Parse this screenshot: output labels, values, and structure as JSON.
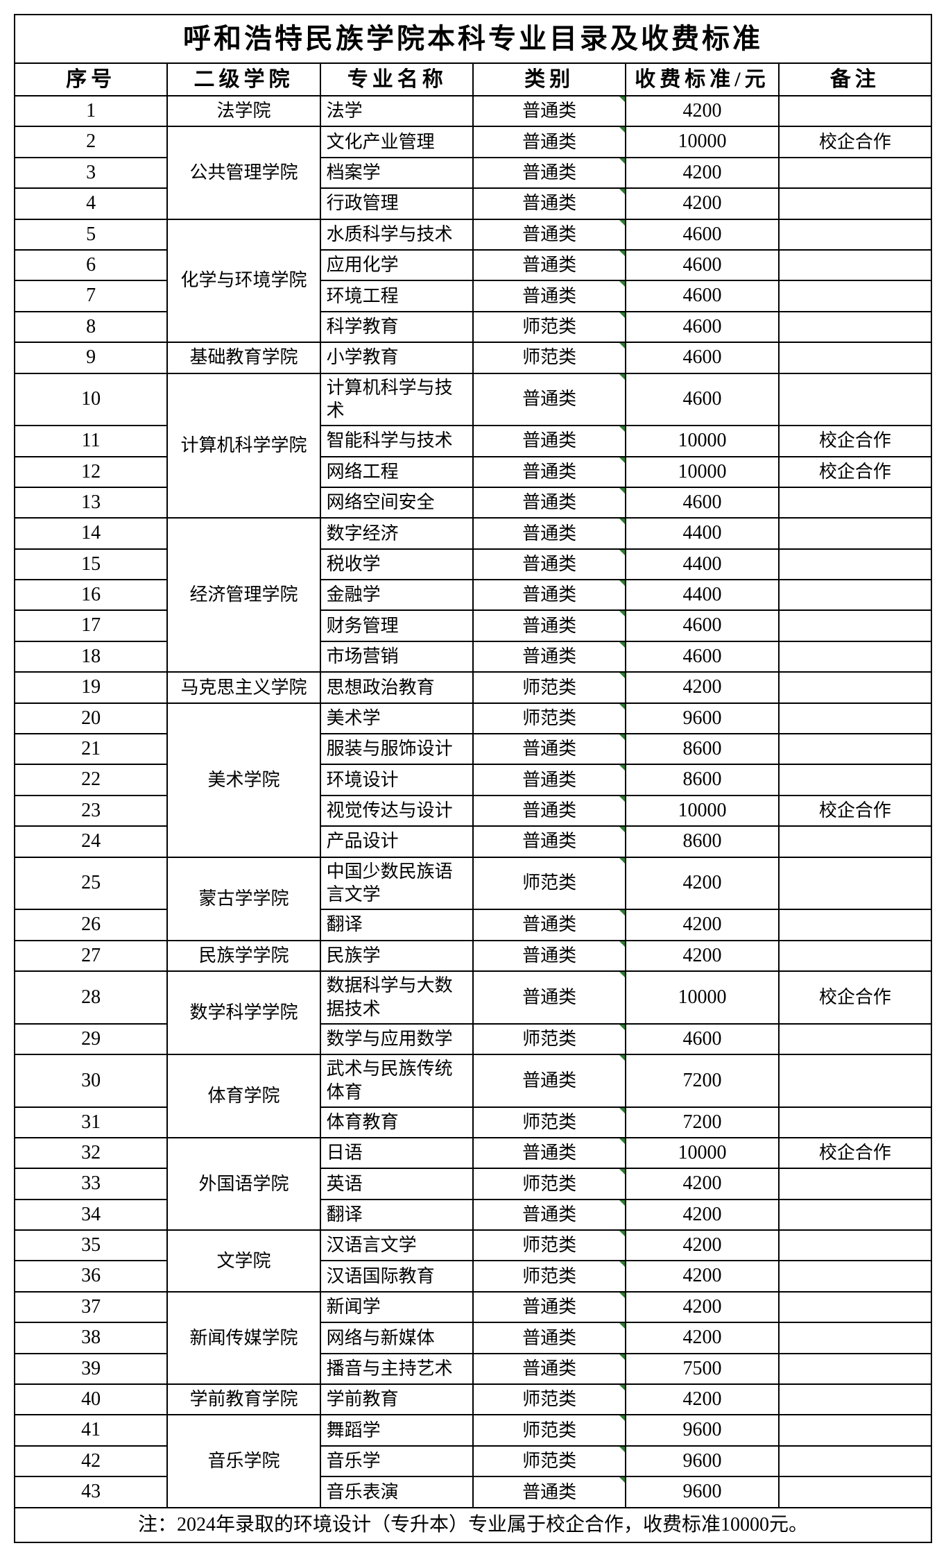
{
  "title": "呼和浩特民族学院本科专业目录及收费标准",
  "headers": {
    "seq": "序号",
    "college": "二级学院",
    "major": "专业名称",
    "cat": "类别",
    "fee": "收费标准/元",
    "note": "备注"
  },
  "footnote": "注：2024年录取的环境设计（专升本）专业属于校企合作，收费标准10000元。",
  "colleges": [
    {
      "name": "法学院",
      "rows": [
        {
          "seq": 1,
          "major": "法学",
          "cat": "普通类",
          "fee": "4200",
          "note": ""
        }
      ]
    },
    {
      "name": "公共管理学院",
      "rows": [
        {
          "seq": 2,
          "major": "文化产业管理",
          "cat": "普通类",
          "fee": "10000",
          "note": "校企合作"
        },
        {
          "seq": 3,
          "major": "档案学",
          "cat": "普通类",
          "fee": "4200",
          "note": ""
        },
        {
          "seq": 4,
          "major": "行政管理",
          "cat": "普通类",
          "fee": "4200",
          "note": ""
        }
      ]
    },
    {
      "name": "化学与环境学院",
      "rows": [
        {
          "seq": 5,
          "major": "水质科学与技术",
          "cat": "普通类",
          "fee": "4600",
          "note": ""
        },
        {
          "seq": 6,
          "major": "应用化学",
          "cat": "普通类",
          "fee": "4600",
          "note": ""
        },
        {
          "seq": 7,
          "major": "环境工程",
          "cat": "普通类",
          "fee": "4600",
          "note": ""
        },
        {
          "seq": 8,
          "major": "科学教育",
          "cat": "师范类",
          "fee": "4600",
          "note": ""
        }
      ]
    },
    {
      "name": "基础教育学院",
      "rows": [
        {
          "seq": 9,
          "major": "小学教育",
          "cat": "师范类",
          "fee": "4600",
          "note": ""
        }
      ]
    },
    {
      "name": "计算机科学学院",
      "rows": [
        {
          "seq": 10,
          "major": "计算机科学与技术",
          "cat": "普通类",
          "fee": "4600",
          "note": ""
        },
        {
          "seq": 11,
          "major": "智能科学与技术",
          "cat": "普通类",
          "fee": "10000",
          "note": "校企合作"
        },
        {
          "seq": 12,
          "major": "网络工程",
          "cat": "普通类",
          "fee": "10000",
          "note": "校企合作"
        },
        {
          "seq": 13,
          "major": "网络空间安全",
          "cat": "普通类",
          "fee": "4600",
          "note": ""
        }
      ]
    },
    {
      "name": "经济管理学院",
      "rows": [
        {
          "seq": 14,
          "major": "数字经济",
          "cat": "普通类",
          "fee": "4400",
          "note": ""
        },
        {
          "seq": 15,
          "major": "税收学",
          "cat": "普通类",
          "fee": "4400",
          "note": ""
        },
        {
          "seq": 16,
          "major": "金融学",
          "cat": "普通类",
          "fee": "4400",
          "note": ""
        },
        {
          "seq": 17,
          "major": "财务管理",
          "cat": "普通类",
          "fee": "4600",
          "note": ""
        },
        {
          "seq": 18,
          "major": "市场营销",
          "cat": "普通类",
          "fee": "4600",
          "note": ""
        }
      ]
    },
    {
      "name": "马克思主义学院",
      "rows": [
        {
          "seq": 19,
          "major": "思想政治教育",
          "cat": "师范类",
          "fee": "4200",
          "note": ""
        }
      ]
    },
    {
      "name": "美术学院",
      "rows": [
        {
          "seq": 20,
          "major": "美术学",
          "cat": "师范类",
          "fee": "9600",
          "note": ""
        },
        {
          "seq": 21,
          "major": "服装与服饰设计",
          "cat": "普通类",
          "fee": "8600",
          "note": ""
        },
        {
          "seq": 22,
          "major": "环境设计",
          "cat": "普通类",
          "fee": "8600",
          "note": ""
        },
        {
          "seq": 23,
          "major": "视觉传达与设计",
          "cat": "普通类",
          "fee": "10000",
          "note": "校企合作"
        },
        {
          "seq": 24,
          "major": "产品设计",
          "cat": "普通类",
          "fee": "8600",
          "note": ""
        }
      ]
    },
    {
      "name": "蒙古学学院",
      "rows": [
        {
          "seq": 25,
          "major": "中国少数民族语言文学",
          "cat": "师范类",
          "fee": "4200",
          "note": ""
        },
        {
          "seq": 26,
          "major": "翻译",
          "cat": "普通类",
          "fee": "4200",
          "note": ""
        }
      ]
    },
    {
      "name": "民族学学院",
      "rows": [
        {
          "seq": 27,
          "major": "民族学",
          "cat": "普通类",
          "fee": "4200",
          "note": ""
        }
      ]
    },
    {
      "name": "数学科学学院",
      "rows": [
        {
          "seq": 28,
          "major": "数据科学与大数据技术",
          "cat": "普通类",
          "fee": "10000",
          "note": "校企合作"
        },
        {
          "seq": 29,
          "major": "数学与应用数学",
          "cat": "师范类",
          "fee": "4600",
          "note": ""
        }
      ]
    },
    {
      "name": "体育学院",
      "rows": [
        {
          "seq": 30,
          "major": "武术与民族传统体育",
          "cat": "普通类",
          "fee": "7200",
          "note": ""
        },
        {
          "seq": 31,
          "major": "体育教育",
          "cat": "师范类",
          "fee": "7200",
          "note": ""
        }
      ]
    },
    {
      "name": "外国语学院",
      "rows": [
        {
          "seq": 32,
          "major": "日语",
          "cat": "普通类",
          "fee": "10000",
          "note": "校企合作"
        },
        {
          "seq": 33,
          "major": "英语",
          "cat": "师范类",
          "fee": "4200",
          "note": ""
        },
        {
          "seq": 34,
          "major": "翻译",
          "cat": "普通类",
          "fee": "4200",
          "note": ""
        }
      ]
    },
    {
      "name": "文学院",
      "rows": [
        {
          "seq": 35,
          "major": "汉语言文学",
          "cat": "师范类",
          "fee": "4200",
          "note": ""
        },
        {
          "seq": 36,
          "major": "汉语国际教育",
          "cat": "师范类",
          "fee": "4200",
          "note": ""
        }
      ]
    },
    {
      "name": "新闻传媒学院",
      "rows": [
        {
          "seq": 37,
          "major": "新闻学",
          "cat": "普通类",
          "fee": "4200",
          "note": ""
        },
        {
          "seq": 38,
          "major": "网络与新媒体",
          "cat": "普通类",
          "fee": "4200",
          "note": ""
        },
        {
          "seq": 39,
          "major": "播音与主持艺术",
          "cat": "普通类",
          "fee": "7500",
          "note": ""
        }
      ]
    },
    {
      "name": "学前教育学院",
      "rows": [
        {
          "seq": 40,
          "major": "学前教育",
          "cat": "师范类",
          "fee": "4200",
          "note": ""
        }
      ]
    },
    {
      "name": "音乐学院",
      "rows": [
        {
          "seq": 41,
          "major": "舞蹈学",
          "cat": "师范类",
          "fee": "9600",
          "note": ""
        },
        {
          "seq": 42,
          "major": "音乐学",
          "cat": "师范类",
          "fee": "9600",
          "note": ""
        },
        {
          "seq": 43,
          "major": "音乐表演",
          "cat": "普通类",
          "fee": "9600",
          "note": ""
        }
      ]
    }
  ]
}
